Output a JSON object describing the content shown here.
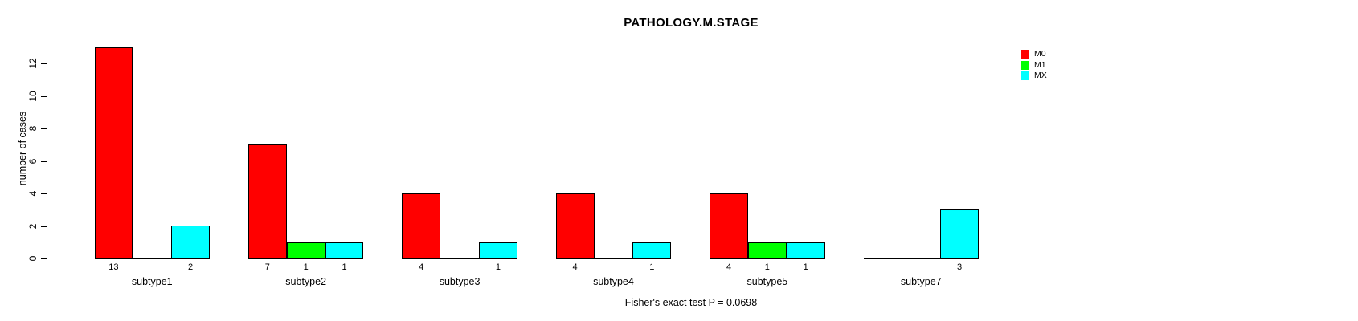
{
  "chart_data": {
    "type": "bar",
    "title": "PATHOLOGY.M.STAGE",
    "ylabel": "number of cases",
    "xlabel": "",
    "footnote": "Fisher's exact test P = 0.0698",
    "categories": [
      "subtype1",
      "subtype2",
      "subtype3",
      "subtype4",
      "subtype5",
      "subtype7"
    ],
    "series": [
      {
        "name": "M0",
        "color": "#ff0000",
        "values": [
          13,
          7,
          4,
          4,
          4,
          0
        ]
      },
      {
        "name": "M1",
        "color": "#00ff00",
        "values": [
          0,
          1,
          0,
          0,
          1,
          0
        ]
      },
      {
        "name": "MX",
        "color": "#00ffff",
        "values": [
          2,
          1,
          1,
          1,
          1,
          3
        ]
      }
    ],
    "y_ticks": [
      0,
      2,
      4,
      6,
      8,
      10,
      12
    ],
    "ylim": [
      0,
      13
    ],
    "grid": false,
    "legend_position": "top-right",
    "bar_value_labels": "shown under each nonzero bar",
    "bar_border_color": "#000000",
    "background_color": "#ffffff"
  }
}
